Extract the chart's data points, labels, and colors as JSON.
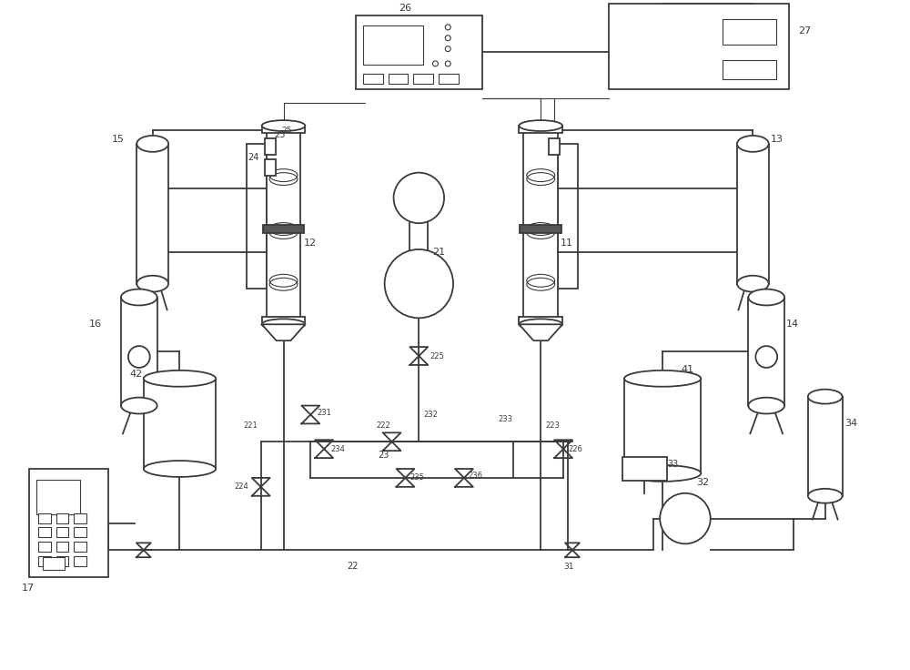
{
  "bg_color": "#ffffff",
  "line_color": "#3a3a3a",
  "lw": 1.3,
  "tlw": 0.8
}
